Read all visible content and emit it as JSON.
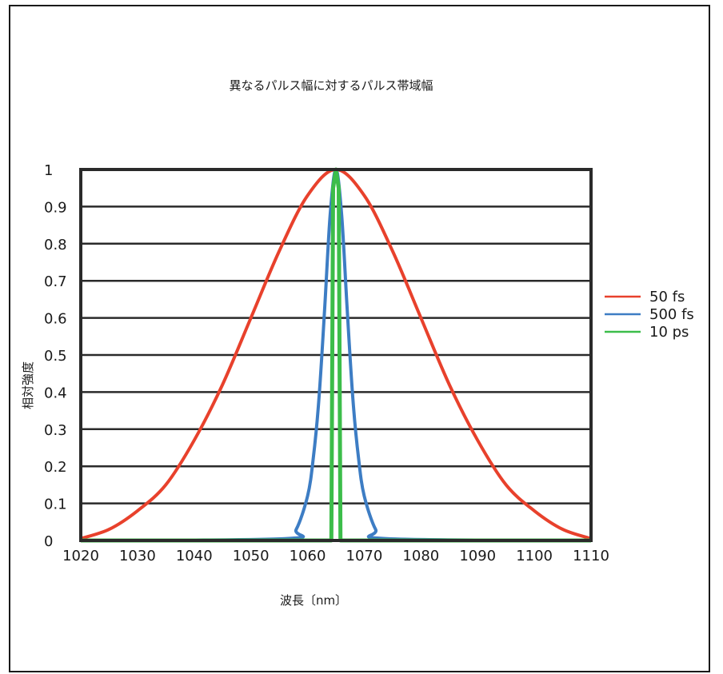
{
  "chart_data": {
    "type": "line",
    "title": "異なるパルス幅に対するパルス帯域幅",
    "xlabel": "波長〔nm〕",
    "ylabel": "相対強度",
    "xlim": [
      1020,
      1110
    ],
    "ylim": [
      0,
      1
    ],
    "x_ticks": [
      "1020",
      "1030",
      "1040",
      "1050",
      "1060",
      "1070",
      "1080",
      "1090",
      "1100",
      "1110"
    ],
    "y_ticks": [
      "0",
      "0.1",
      "0.2",
      "0.3",
      "0.4",
      "0.5",
      "0.6",
      "0.7",
      "0.8",
      "0.9",
      "1"
    ],
    "grid": "horizontal",
    "legend_position": "right",
    "series": [
      {
        "name": "50 fs",
        "color": "#e8412c",
        "x": [
          1020,
          1025,
          1030,
          1035,
          1040,
          1045,
          1050,
          1055,
          1060,
          1065,
          1070,
          1075,
          1080,
          1085,
          1090,
          1095,
          1100,
          1105,
          1110
        ],
        "y": [
          0.005,
          0.03,
          0.08,
          0.15,
          0.27,
          0.42,
          0.6,
          0.78,
          0.93,
          1.0,
          0.93,
          0.78,
          0.6,
          0.42,
          0.27,
          0.15,
          0.08,
          0.03,
          0.005
        ]
      },
      {
        "name": "500 fs",
        "color": "#3d7dc4",
        "x": [
          1020,
          1056,
          1058,
          1060,
          1061,
          1062,
          1063,
          1064,
          1065,
          1066,
          1067,
          1068,
          1069,
          1070,
          1072,
          1074,
          1110
        ],
        "y": [
          0,
          0.005,
          0.03,
          0.12,
          0.22,
          0.38,
          0.62,
          0.88,
          1.0,
          0.88,
          0.62,
          0.38,
          0.22,
          0.12,
          0.03,
          0.005,
          0
        ]
      },
      {
        "name": "10 ps",
        "color": "#3cbd4a",
        "x": [
          1020,
          1064.2,
          1064.5,
          1065,
          1065.5,
          1065.8,
          1110
        ],
        "y": [
          0,
          0,
          0.95,
          1.0,
          0.95,
          0,
          0
        ]
      }
    ]
  }
}
